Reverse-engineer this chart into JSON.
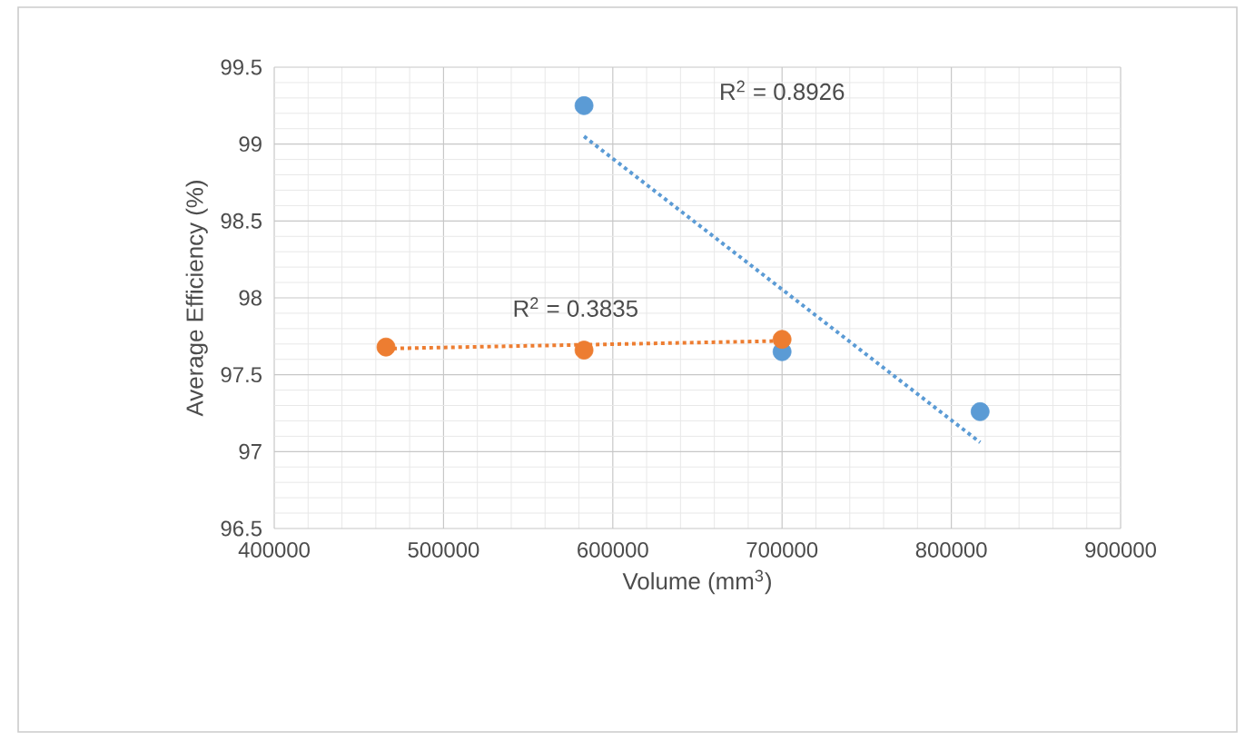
{
  "chart_data": {
    "type": "scatter",
    "xlabel": "Volume (mm$^{3}$)",
    "ylabel": "Average Efficiency (%)",
    "xlim": [
      400000,
      900000
    ],
    "xticks": [
      400000,
      500000,
      600000,
      700000,
      800000,
      900000
    ],
    "ylim": [
      96.5,
      99.5
    ],
    "yticks": [
      96.5,
      97,
      97.5,
      98,
      98.5,
      99,
      99.5
    ],
    "grid": true,
    "legend": false,
    "marker": "circle",
    "series": [
      {
        "type": "line",
        "color": "#5b9bd5",
        "x": [
          583000,
          817000
        ],
        "values": [
          99.05,
          97.06
        ],
        "marker": "none",
        "line_style": "dotted"
      },
      {
        "type": "line",
        "color": "#ed7d31",
        "x": [
          466000,
          700000
        ],
        "values": [
          97.67,
          97.72
        ],
        "marker": "none",
        "line_style": "dotted"
      },
      {
        "color": "#5b9bd5",
        "x": [
          583000,
          700000,
          817000
        ],
        "values": [
          99.25,
          97.65,
          97.26
        ]
      },
      {
        "color": "#ed7d31",
        "x": [
          466000,
          583000,
          700000
        ],
        "values": [
          97.68,
          97.66,
          97.73
        ]
      }
    ],
    "annotations": [
      "R$^{2}$ = 0.8926",
      "R$^{2}$ = 0.3835"
    ]
  }
}
